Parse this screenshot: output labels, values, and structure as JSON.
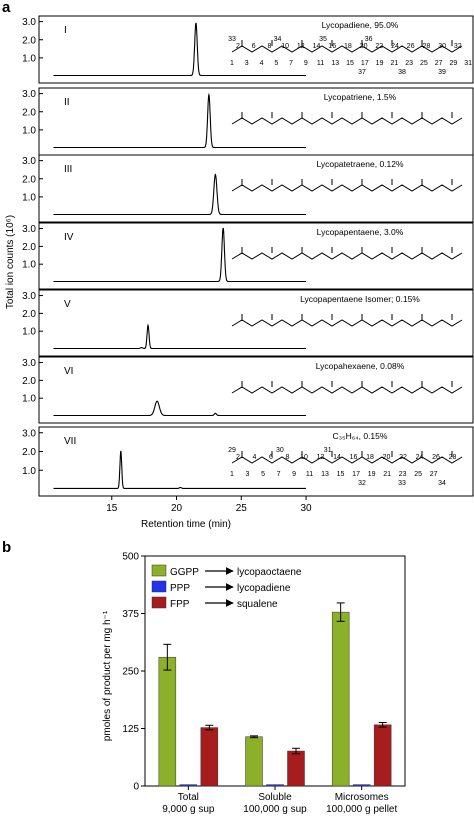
{
  "panel_a": {
    "label": "a",
    "ylabel": "Total ion counts (10⁶)",
    "xlabel": "Retention time (min)",
    "x_ticks": [
      15,
      20,
      25,
      30
    ],
    "xlim": [
      10,
      31
    ],
    "traces": [
      {
        "roman": "I",
        "name": "Lycopadiene, 95.0%",
        "peak_x": 21.5,
        "peak_h": 2.9,
        "width": 0.14,
        "y_ticks": [
          1.0,
          2.0,
          3.0
        ],
        "minor": []
      },
      {
        "roman": "II",
        "name": "Lycopatriene, 1.5%",
        "peak_x": 22.5,
        "peak_h": 2.9,
        "width": 0.14,
        "y_ticks": [
          1.0,
          2.0,
          3.0
        ],
        "minor": []
      },
      {
        "roman": "III",
        "name": "Lycopatetraene, 0.12%",
        "peak_x": 23.0,
        "peak_h": 2.2,
        "width": 0.17,
        "y_ticks": [
          1.0,
          2.0,
          3.0
        ],
        "minor": []
      },
      {
        "roman": "IV",
        "name": "Lycopapentaene, 3.0%",
        "peak_x": 23.6,
        "peak_h": 3.0,
        "width": 0.14,
        "y_ticks": [
          1.0,
          2.0,
          3.0
        ],
        "minor": []
      },
      {
        "roman": "V",
        "name": "Lycopapentaene Isomer; 0.15%",
        "peak_x": 17.8,
        "peak_h": 1.3,
        "width": 0.11,
        "y_ticks": [
          1.0,
          2.0,
          3.0
        ],
        "minor": [
          {
            "x": 17.3,
            "h": 0.05
          }
        ]
      },
      {
        "roman": "VI",
        "name": "Lycopahexaene, 0.08%",
        "peak_x": 18.5,
        "peak_h": 0.8,
        "width": 0.25,
        "y_ticks": [
          1.0,
          2.0,
          3.0
        ],
        "minor": [
          {
            "x": 23.0,
            "h": 0.12
          }
        ]
      },
      {
        "roman": "VII",
        "name": "C₃₅H₆₄, 0.15%",
        "peak_x": 15.7,
        "peak_h": 2.0,
        "width": 0.1,
        "y_ticks": [
          1.0,
          2.0,
          3.0
        ],
        "minor": [
          {
            "x": 20.3,
            "h": 0.05
          }
        ]
      }
    ],
    "numbering_I": {
      "top": [
        "33",
        "34",
        "35",
        "36"
      ],
      "mid": [
        "2",
        "6",
        "8",
        "10",
        "12",
        "14",
        "16",
        "18",
        "20",
        "22",
        "24",
        "26",
        "28",
        "30",
        "32"
      ],
      "bottom": [
        "1",
        "3",
        "4",
        "5",
        "7",
        "9",
        "11",
        "13",
        "15",
        "17",
        "19",
        "21",
        "23",
        "25",
        "27",
        "29",
        "31"
      ],
      "lower": [
        "37",
        "38",
        "39",
        "40"
      ]
    },
    "numbering_VII": {
      "top": [
        "29",
        "30",
        "31"
      ],
      "mid": [
        "2",
        "4",
        "6",
        "8",
        "10",
        "12",
        "14",
        "16",
        "18",
        "20",
        "22",
        "24",
        "26",
        "28"
      ],
      "bottom": [
        "1",
        "3",
        "5",
        "7",
        "9",
        "11",
        "13",
        "15",
        "17",
        "19",
        "21",
        "23",
        "25",
        "27"
      ],
      "lower": [
        "32",
        "33",
        "34",
        "35"
      ]
    }
  },
  "panel_b": {
    "label": "b",
    "ylabel": "pmoles of product per mg h⁻¹",
    "legend": [
      {
        "from": "GGPP",
        "to": "lycopaoctaene",
        "color": "#8db02b"
      },
      {
        "from": "PPP",
        "to": "lycopadiene",
        "color": "#2233ee"
      },
      {
        "from": "FPP",
        "to": "squalene",
        "color": "#a71d1d"
      }
    ]
  },
  "chart_data": [
    {
      "type": "line",
      "xlabel": "Retention time (min)",
      "ylabel": "Total ion counts (10⁶)",
      "xlim": [
        10,
        31
      ],
      "ylim": [
        0,
        3.2
      ],
      "series": [
        {
          "name": "Lycopadiene, 95.0%",
          "peak_x": 21.5,
          "peak_y": 2.9
        },
        {
          "name": "Lycopatriene, 1.5%",
          "peak_x": 22.5,
          "peak_y": 2.9
        },
        {
          "name": "Lycopatetraene, 0.12%",
          "peak_x": 23.0,
          "peak_y": 2.2
        },
        {
          "name": "Lycopapentaene, 3.0%",
          "peak_x": 23.6,
          "peak_y": 3.0
        },
        {
          "name": "Lycopapentaene Isomer; 0.15%",
          "peak_x": 17.8,
          "peak_y": 1.3
        },
        {
          "name": "Lycopahexaene, 0.08%",
          "peak_x": 18.5,
          "peak_y": 0.8
        },
        {
          "name": "C₃₅H₆₄, 0.15%",
          "peak_x": 15.7,
          "peak_y": 2.0
        }
      ]
    },
    {
      "type": "bar",
      "ylabel": "pmoles of product per mg h⁻¹",
      "ylim": [
        0,
        500
      ],
      "y_ticks": [
        0,
        125,
        250,
        375,
        500
      ],
      "categories": [
        [
          "Total",
          "9,000 g sup"
        ],
        [
          "Soluble",
          "100,000 g sup"
        ],
        [
          "Microsomes",
          "100,000 g pellet"
        ]
      ],
      "series": [
        {
          "name": "GGPP → lycopaoctaene",
          "values": [
            280,
            107,
            378
          ],
          "errors": [
            28,
            2,
            20
          ]
        },
        {
          "name": "PPP → lycopadiene",
          "values": [
            3,
            3,
            3
          ],
          "errors": [
            0,
            0,
            0
          ]
        },
        {
          "name": "FPP → squalene",
          "values": [
            127,
            76,
            133
          ],
          "errors": [
            5,
            6,
            5
          ]
        }
      ],
      "legend_position": "top-left"
    }
  ]
}
